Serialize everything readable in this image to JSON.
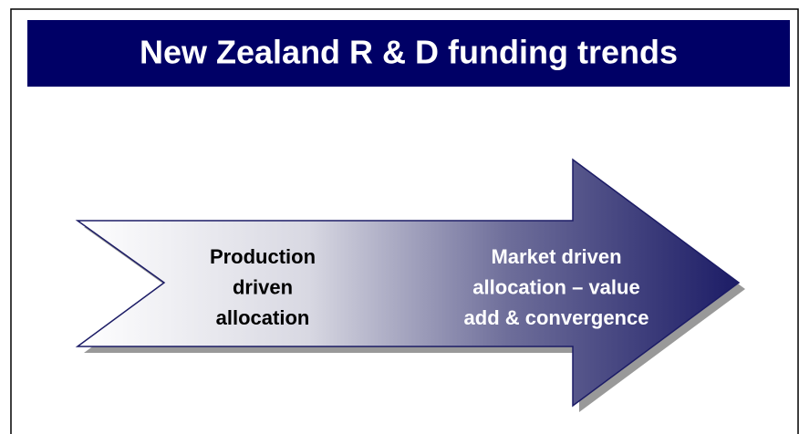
{
  "header": {
    "title": "New Zealand R & D funding trends"
  },
  "arrow": {
    "left_label": [
      "Production",
      "driven",
      "allocation"
    ],
    "right_label": [
      "Market driven",
      "allocation – value",
      "add & convergence"
    ]
  }
}
